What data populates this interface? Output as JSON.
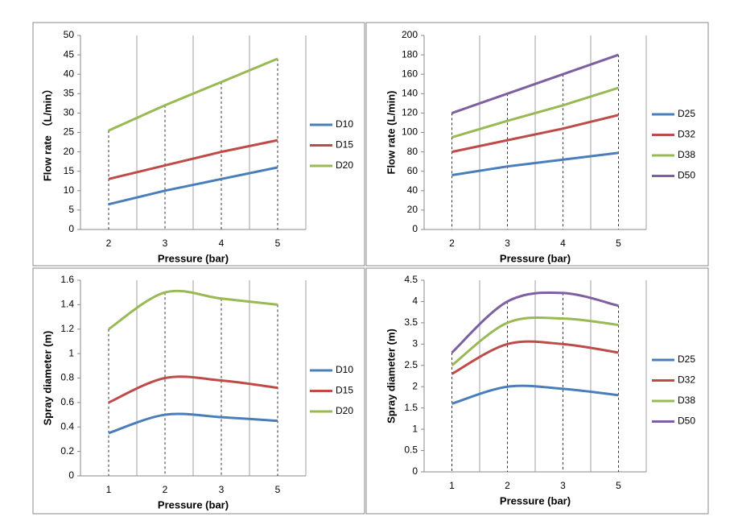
{
  "chart_data": [
    {
      "type": "line",
      "smooth": false,
      "categories": [
        "2",
        "3",
        "4",
        "5"
      ],
      "series": [
        {
          "name": "D10",
          "color": "#4a7ebb",
          "values": [
            6.5,
            10,
            13,
            16
          ]
        },
        {
          "name": "D15",
          "color": "#be4b48",
          "values": [
            13,
            16.5,
            20,
            23
          ]
        },
        {
          "name": "D20",
          "color": "#98b954",
          "values": [
            25.5,
            32,
            38,
            44
          ]
        }
      ],
      "ylim": [
        0,
        50
      ],
      "yticks": [
        0,
        5,
        10,
        15,
        20,
        25,
        30,
        35,
        40,
        45,
        50
      ],
      "x_label": "Pressure (bar)",
      "y_label": "Flow rate （L/min）",
      "grid": "vertical",
      "legend": "right"
    },
    {
      "type": "line",
      "smooth": false,
      "categories": [
        "2",
        "3",
        "4",
        "5"
      ],
      "series": [
        {
          "name": "D25",
          "color": "#4a7ebb",
          "values": [
            56,
            65,
            72,
            79
          ]
        },
        {
          "name": "D32",
          "color": "#be4b48",
          "values": [
            80,
            92,
            104,
            118
          ]
        },
        {
          "name": "D38",
          "color": "#98b954",
          "values": [
            95,
            112,
            128,
            146
          ]
        },
        {
          "name": "D50",
          "color": "#7d60a0",
          "values": [
            120,
            140,
            160,
            180
          ]
        }
      ],
      "ylim": [
        0,
        200
      ],
      "yticks": [
        0,
        20,
        40,
        60,
        80,
        100,
        120,
        140,
        160,
        180,
        200
      ],
      "x_label": "Pressure (bar)",
      "y_label": "Flow rate (L/min)",
      "grid": "vertical",
      "legend": "right"
    },
    {
      "type": "line",
      "smooth": true,
      "categories": [
        "1",
        "2",
        "3",
        "5"
      ],
      "series": [
        {
          "name": "D10",
          "color": "#4a7ebb",
          "values": [
            0.35,
            0.5,
            0.48,
            0.45
          ]
        },
        {
          "name": "D15",
          "color": "#be4b48",
          "values": [
            0.6,
            0.8,
            0.78,
            0.72
          ]
        },
        {
          "name": "D20",
          "color": "#98b954",
          "values": [
            1.2,
            1.5,
            1.45,
            1.4
          ]
        }
      ],
      "ylim": [
        0,
        1.6
      ],
      "yticks": [
        0,
        0.2,
        0.4,
        0.6,
        0.8,
        1,
        1.2,
        1.4,
        1.6
      ],
      "x_label": "Pressure (bar)",
      "y_label": "Spray diameter (m)",
      "grid": "vertical",
      "legend": "right"
    },
    {
      "type": "line",
      "smooth": true,
      "categories": [
        "1",
        "2",
        "3",
        "5"
      ],
      "series": [
        {
          "name": "D25",
          "color": "#4a7ebb",
          "values": [
            1.6,
            2.0,
            1.95,
            1.8
          ]
        },
        {
          "name": "D32",
          "color": "#be4b48",
          "values": [
            2.3,
            3.0,
            3.0,
            2.8
          ]
        },
        {
          "name": "D38",
          "color": "#98b954",
          "values": [
            2.5,
            3.5,
            3.6,
            3.45
          ]
        },
        {
          "name": "D50",
          "color": "#7d60a0",
          "values": [
            2.8,
            4.0,
            4.2,
            3.9
          ]
        }
      ],
      "ylim": [
        0,
        4.5
      ],
      "yticks": [
        0,
        0.5,
        1,
        1.5,
        2,
        2.5,
        3,
        3.5,
        4,
        4.5
      ],
      "x_label": "Pressure (bar)",
      "y_label": "Spray diameter (m)",
      "grid": "vertical",
      "legend": "right"
    }
  ]
}
